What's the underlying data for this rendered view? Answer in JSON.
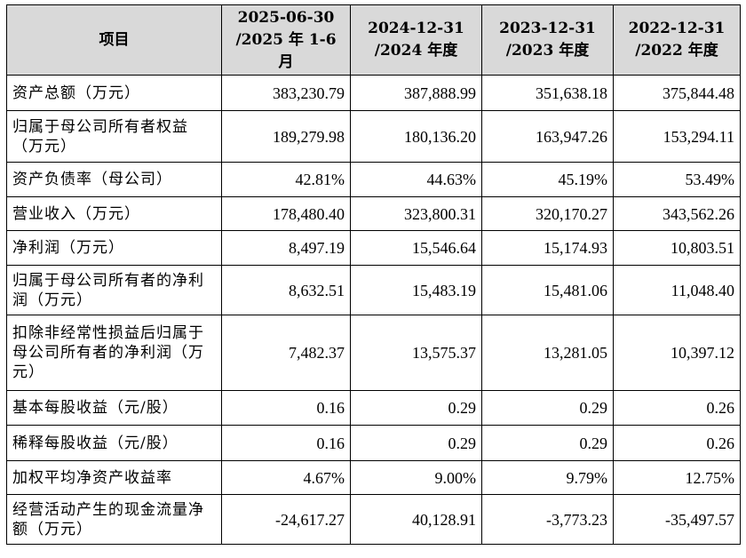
{
  "header": {
    "item": "项目",
    "periods": [
      "2025-06-30\n/2025 年 1-6\n月",
      "2024-12-31\n/2024 年度",
      "2023-12-31\n/2023 年度",
      "2022-12-31\n/2022 年度"
    ]
  },
  "rows": [
    {
      "label": "资产总额（万元）",
      "values": [
        "383,230.79",
        "387,888.99",
        "351,638.18",
        "375,844.48"
      ]
    },
    {
      "label": "归属于母公司所有者权益（万元）",
      "values": [
        "189,279.98",
        "180,136.20",
        "163,947.26",
        "153,294.11"
      ]
    },
    {
      "label": "资产负债率（母公司）",
      "values": [
        "42.81%",
        "44.63%",
        "45.19%",
        "53.49%"
      ]
    },
    {
      "label": "营业收入（万元）",
      "values": [
        "178,480.40",
        "323,800.31",
        "320,170.27",
        "343,562.26"
      ]
    },
    {
      "label": "净利润（万元）",
      "values": [
        "8,497.19",
        "15,546.64",
        "15,174.93",
        "10,803.51"
      ]
    },
    {
      "label": "归属于母公司所有者的净利润（万元）",
      "values": [
        "8,632.51",
        "15,483.19",
        "15,481.06",
        "11,048.40"
      ]
    },
    {
      "label": "扣除非经常性损益后归属于母公司所有者的净利润（万元）",
      "values": [
        "7,482.37",
        "13,575.37",
        "13,281.05",
        "10,397.12"
      ]
    },
    {
      "label": "基本每股收益（元/股）",
      "values": [
        "0.16",
        "0.29",
        "0.29",
        "0.26"
      ]
    },
    {
      "label": "稀释每股收益（元/股）",
      "values": [
        "0.16",
        "0.29",
        "0.29",
        "0.26"
      ]
    },
    {
      "label": "加权平均净资产收益率",
      "values": [
        "4.67%",
        "9.00%",
        "9.79%",
        "12.75%"
      ]
    },
    {
      "label": "经营活动产生的现金流量净额（万元）",
      "values": [
        "-24,617.27",
        "40,128.91",
        "-3,773.23",
        "-35,497.57"
      ]
    }
  ]
}
